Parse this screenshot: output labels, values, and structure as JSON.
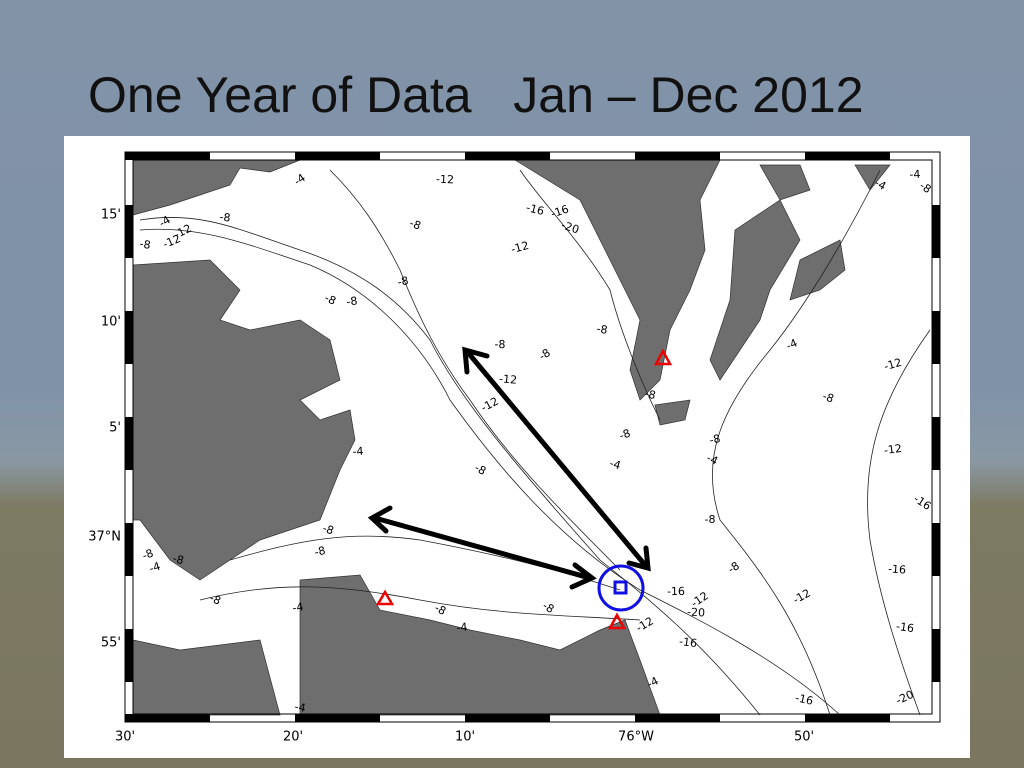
{
  "title": "One Year of Data   Jan – Dec 2012",
  "map": {
    "lat_labels": [
      "15'",
      "10'",
      "5'",
      "37°N",
      "55'"
    ],
    "lon_labels": [
      "30'",
      "20'",
      "10'",
      "76°W",
      "50'"
    ],
    "contour_labels": [
      "-4",
      "-12",
      "-4",
      "-8",
      "-12",
      "-8",
      "-12",
      "-16",
      "-16",
      "-20",
      "-12",
      "-8",
      "-8",
      "-8",
      "-8",
      "-4",
      "-4",
      "-8",
      "-8",
      "-8",
      "-12",
      "-12",
      "-8",
      "-4",
      "-8",
      "-8",
      "-4",
      "-12",
      "-8",
      "-8",
      "-4",
      "-12",
      "-8",
      "-4",
      "-16",
      "-8",
      "-8",
      "-16",
      "-12",
      "-16",
      "-20",
      "-16",
      "-8",
      "-8",
      "-4",
      "-8",
      "-8",
      "-8",
      "-4",
      "-8",
      "-4",
      "-8",
      "-16",
      "-12",
      "-20",
      "-12",
      "-16",
      "-4",
      "-4"
    ]
  }
}
